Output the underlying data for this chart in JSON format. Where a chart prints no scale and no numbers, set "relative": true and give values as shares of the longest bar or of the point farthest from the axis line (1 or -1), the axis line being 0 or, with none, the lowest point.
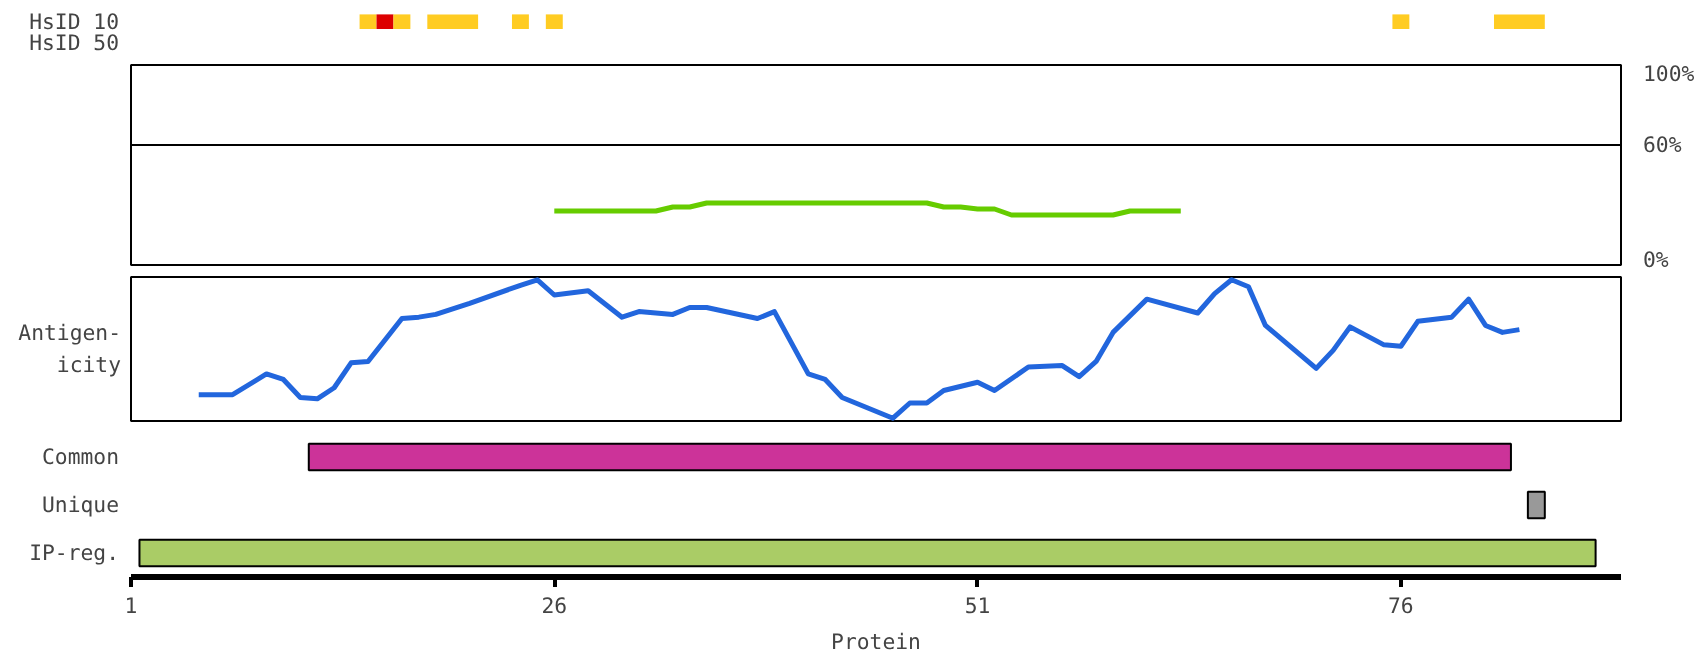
{
  "chart_data": [
    {
      "type": "bar",
      "orientation": "horizontal",
      "categories": [
        "HsID 10",
        "HsID 50"
      ],
      "xlim": [
        1,
        89
      ],
      "tick_labels": "y",
      "series": [
        {
          "color": "#ffcc22",
          "base": [
            14.5,
            null
          ],
          "values": [
            1,
            null
          ]
        },
        {
          "color": "#dd0000",
          "base": [
            15.5,
            null
          ],
          "values": [
            1,
            null
          ]
        },
        {
          "color": "#ffcc22",
          "base": [
            16.5,
            null
          ],
          "values": [
            1,
            null
          ]
        },
        {
          "color": "#ffcc22",
          "base": [
            18.5,
            null
          ],
          "values": [
            3,
            null
          ]
        },
        {
          "color": "#ffcc22",
          "base": [
            23.5,
            null
          ],
          "values": [
            1,
            null
          ]
        },
        {
          "color": "#ffcc22",
          "base": [
            25.5,
            null
          ],
          "values": [
            1,
            null
          ]
        },
        {
          "color": "#ffcc22",
          "base": [
            75.5,
            null
          ],
          "values": [
            1,
            null
          ]
        },
        {
          "color": "#ffcc22",
          "base": [
            81.5,
            null
          ],
          "values": [
            3,
            null
          ]
        }
      ]
    },
    {
      "type": "line",
      "xlim": [
        1,
        89
      ],
      "ylim": [
        0,
        100
      ],
      "tick_labels": "y",
      "grid": "y",
      "yticks": [
        {
          "value": 0,
          "label": "0%"
        },
        {
          "value": 60,
          "label": "60%"
        },
        {
          "value": 100,
          "label": "100%"
        }
      ],
      "series": [
        {
          "color": "#66cc00",
          "x": [
            26,
            32,
            33,
            34,
            35,
            48,
            49,
            50,
            51,
            52,
            53,
            59,
            60,
            63
          ],
          "values": [
            27,
            27,
            29,
            29,
            31,
            31,
            29,
            29,
            28,
            28,
            25,
            25,
            27,
            27
          ]
        }
      ]
    },
    {
      "type": "line",
      "relative": true,
      "xlim": [
        1,
        89
      ],
      "ylabel": "Antigen-\nicity",
      "tick_labels": false,
      "series": [
        {
          "color": "#2266dd",
          "x": [
            5,
            7,
            9,
            10,
            11,
            12,
            13,
            14,
            15,
            17,
            18,
            19,
            21,
            24,
            25,
            26,
            28,
            30,
            31,
            33,
            34,
            35,
            38,
            39,
            41,
            42,
            43,
            46,
            47,
            48,
            49,
            51,
            52,
            54,
            56,
            57,
            58,
            59,
            61,
            64,
            65,
            66,
            67,
            68,
            71,
            72,
            73,
            75,
            76,
            77,
            79,
            80,
            81,
            82,
            83
          ],
          "values": [
            0.17,
            0.17,
            0.32,
            0.28,
            0.15,
            0.14,
            0.22,
            0.4,
            0.41,
            0.72,
            0.73,
            0.75,
            0.83,
            0.96,
            1.0,
            0.89,
            0.92,
            0.73,
            0.77,
            0.75,
            0.8,
            0.8,
            0.72,
            0.77,
            0.32,
            0.28,
            0.15,
            0.0,
            0.11,
            0.11,
            0.2,
            0.26,
            0.2,
            0.37,
            0.38,
            0.3,
            0.41,
            0.62,
            0.86,
            0.76,
            0.9,
            1.0,
            0.95,
            0.67,
            0.36,
            0.49,
            0.66,
            0.53,
            0.52,
            0.7,
            0.73,
            0.86,
            0.67,
            0.62,
            0.64
          ]
        }
      ]
    },
    {
      "type": "bar",
      "orientation": "horizontal",
      "categories": [
        "Common",
        "Unique",
        "IP-reg."
      ],
      "values": [
        71,
        1,
        86
      ],
      "base": [
        11.5,
        83.5,
        1.5
      ],
      "colors": [
        "#cc3399",
        "#999999",
        "#aacc66"
      ],
      "xlim": [
        1,
        89
      ],
      "xticks": [
        1,
        26,
        51,
        76
      ],
      "xlabel": "Protein"
    }
  ]
}
